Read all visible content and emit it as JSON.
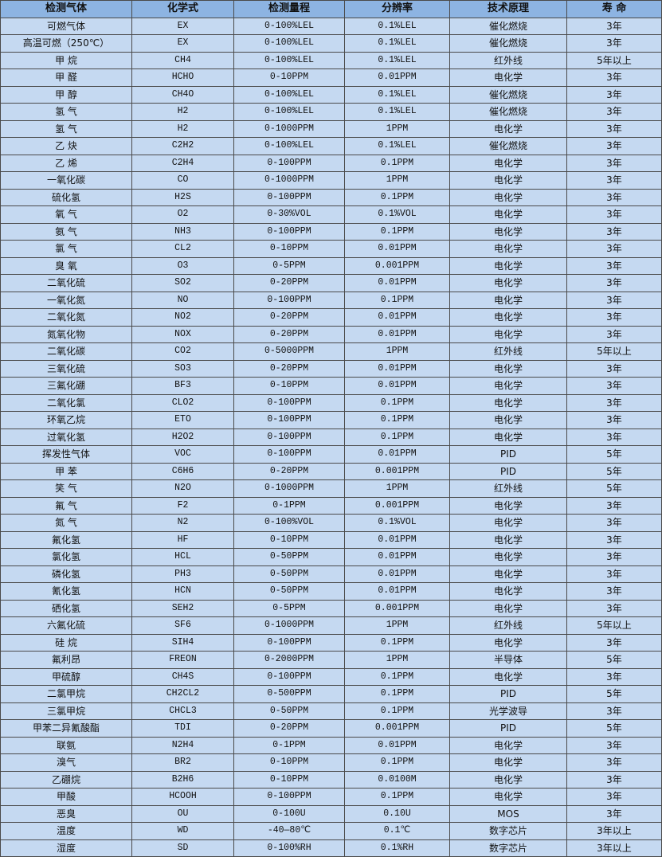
{
  "colors": {
    "header_bg": "#8db4e2",
    "row_bg": "#c5d9f1",
    "border": "#4a4a4a"
  },
  "table": {
    "headers": [
      "检测气体",
      "化学式",
      "检测量程",
      "分辨率",
      "技术原理",
      "寿 命"
    ],
    "rows": [
      [
        "可燃气体",
        "EX",
        "0-100%LEL",
        "0.1%LEL",
        "催化燃烧",
        "3年"
      ],
      [
        "高温可燃（250℃）",
        "EX",
        "0-100%LEL",
        "0.1%LEL",
        "催化燃烧",
        "3年"
      ],
      [
        "甲 烷",
        "CH4",
        "0-100%LEL",
        "0.1%LEL",
        "红外线",
        "5年以上"
      ],
      [
        "甲 醛",
        "HCHO",
        "0-10PPM",
        "0.01PPM",
        "电化学",
        "3年"
      ],
      [
        "甲 醇",
        "CH4O",
        "0-100%LEL",
        "0.1%LEL",
        "催化燃烧",
        "3年"
      ],
      [
        "氢 气",
        "H2",
        "0-100%LEL",
        "0.1%LEL",
        "催化燃烧",
        "3年"
      ],
      [
        "氢 气",
        "H2",
        "0-1000PPM",
        "1PPM",
        "电化学",
        "3年"
      ],
      [
        "乙 炔",
        "C2H2",
        "0-100%LEL",
        "0.1%LEL",
        "催化燃烧",
        "3年"
      ],
      [
        "乙 烯",
        "C2H4",
        "0-100PPM",
        "0.1PPM",
        "电化学",
        "3年"
      ],
      [
        "一氧化碳",
        "CO",
        "0-1000PPM",
        "1PPM",
        "电化学",
        "3年"
      ],
      [
        "硫化氢",
        "H2S",
        "0-100PPM",
        "0.1PPM",
        "电化学",
        "3年"
      ],
      [
        "氧 气",
        "O2",
        "0-30%VOL",
        "0.1%VOL",
        "电化学",
        "3年"
      ],
      [
        "氨 气",
        "NH3",
        "0-100PPM",
        "0.1PPM",
        "电化学",
        "3年"
      ],
      [
        "氯 气",
        "CL2",
        "0-10PPM",
        "0.01PPM",
        "电化学",
        "3年"
      ],
      [
        "臭 氧",
        "O3",
        "0-5PPM",
        "0.001PPM",
        "电化学",
        "3年"
      ],
      [
        "二氧化硫",
        "SO2",
        "0-20PPM",
        "0.01PPM",
        "电化学",
        "3年"
      ],
      [
        "一氧化氮",
        "NO",
        "0-100PPM",
        "0.1PPM",
        "电化学",
        "3年"
      ],
      [
        "二氧化氮",
        "NO2",
        "0-20PPM",
        "0.01PPM",
        "电化学",
        "3年"
      ],
      [
        "氮氧化物",
        "NOX",
        "0-20PPM",
        "0.01PPM",
        "电化学",
        "3年"
      ],
      [
        "二氧化碳",
        "CO2",
        "0-5000PPM",
        "1PPM",
        "红外线",
        "5年以上"
      ],
      [
        "三氧化硫",
        "SO3",
        "0-20PPM",
        "0.01PPM",
        "电化学",
        "3年"
      ],
      [
        "三氟化硼",
        "BF3",
        "0-10PPM",
        "0.01PPM",
        "电化学",
        "3年"
      ],
      [
        "二氧化氯",
        "CLO2",
        "0-100PPM",
        "0.1PPM",
        "电化学",
        "3年"
      ],
      [
        "环氧乙烷",
        "ETO",
        "0-100PPM",
        "0.1PPM",
        "电化学",
        "3年"
      ],
      [
        "过氧化氢",
        "H2O2",
        "0-100PPM",
        "0.1PPM",
        "电化学",
        "3年"
      ],
      [
        "挥发性气体",
        "VOC",
        "0-100PPM",
        "0.01PPM",
        "PID",
        "5年"
      ],
      [
        "甲 苯",
        "C6H6",
        "0-20PPM",
        "0.001PPM",
        "PID",
        "5年"
      ],
      [
        "笑 气",
        "N2O",
        "0-1000PPM",
        "1PPM",
        "红外线",
        "5年"
      ],
      [
        "氟 气",
        "F2",
        "0-1PPM",
        "0.001PPM",
        "电化学",
        "3年"
      ],
      [
        "氮 气",
        "N2",
        "0-100%VOL",
        "0.1%VOL",
        "电化学",
        "3年"
      ],
      [
        "氟化氢",
        "HF",
        "0-10PPM",
        "0.01PPM",
        "电化学",
        "3年"
      ],
      [
        "氯化氢",
        "HCL",
        "0-50PPM",
        "0.01PPM",
        "电化学",
        "3年"
      ],
      [
        "磷化氢",
        "PH3",
        "0-50PPM",
        "0.01PPM",
        "电化学",
        "3年"
      ],
      [
        "氰化氢",
        "HCN",
        "0-50PPM",
        "0.01PPM",
        "电化学",
        "3年"
      ],
      [
        "硒化氢",
        "SEH2",
        "0-5PPM",
        "0.001PPM",
        "电化学",
        "3年"
      ],
      [
        "六氟化硫",
        "SF6",
        "0-1000PPM",
        "1PPM",
        "红外线",
        "5年以上"
      ],
      [
        "硅 烷",
        "SIH4",
        "0-100PPM",
        "0.1PPM",
        "电化学",
        "3年"
      ],
      [
        "氟利昂",
        "FREON",
        "0-2000PPM",
        "1PPM",
        "半导体",
        "5年"
      ],
      [
        "甲硫醇",
        "CH4S",
        "0-100PPM",
        "0.1PPM",
        "电化学",
        "3年"
      ],
      [
        "二氯甲烷",
        "CH2CL2",
        "0-500PPM",
        "0.1PPM",
        "PID",
        "5年"
      ],
      [
        "三氯甲烷",
        "CHCL3",
        "0-50PPM",
        "0.1PPM",
        "光学波导",
        "3年"
      ],
      [
        "甲苯二异氰酸酯",
        "TDI",
        "0-20PPM",
        "0.001PPM",
        "PID",
        "5年"
      ],
      [
        "联氨",
        "N2H4",
        "0-1PPM",
        "0.01PPM",
        "电化学",
        "3年"
      ],
      [
        "溴气",
        "BR2",
        "0-10PPM",
        "0.1PPM",
        "电化学",
        "3年"
      ],
      [
        "乙硼烷",
        "B2H6",
        "0-10PPM",
        "0.0100M",
        "电化学",
        "3年"
      ],
      [
        "甲酸",
        "HCOOH",
        "0-100PPM",
        "0.1PPM",
        "电化学",
        "3年"
      ],
      [
        "恶臭",
        "OU",
        "0-100U",
        "0.10U",
        "MOS",
        "3年"
      ],
      [
        "温度",
        "WD",
        "-40—80℃",
        "0.1℃",
        "数字芯片",
        "3年以上"
      ],
      [
        "湿度",
        "SD",
        "0-100%RH",
        "0.1%RH",
        "数字芯片",
        "3年以上"
      ]
    ]
  }
}
